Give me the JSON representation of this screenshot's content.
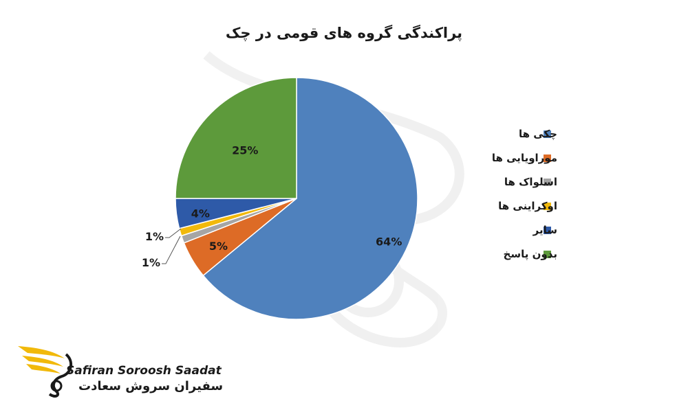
{
  "chart_data": {
    "type": "pie",
    "title": "پراکندگی گروه های قومی در چک",
    "slices": [
      {
        "label": "چکی ها",
        "value": 64,
        "display": "64%",
        "color": "#4f81bd"
      },
      {
        "label": "موراویایی ها",
        "value": 5,
        "display": "5%",
        "color": "#dd6b26"
      },
      {
        "label": "اسلواک ها",
        "value": 1,
        "display": "1%",
        "color": "#a5a5a5"
      },
      {
        "label": "اوکراینی ها",
        "value": 1,
        "display": "1%",
        "color": "#f1b90b"
      },
      {
        "label": "سایر",
        "value": 4,
        "display": "4%",
        "color": "#2e5aa8"
      },
      {
        "label": "بدون پاسخ",
        "value": 25,
        "display": "25%",
        "color": "#5d9a3b"
      }
    ],
    "legend_position": "right"
  },
  "logo": {
    "name_en": "Safiran Soroosh Saadat",
    "name_fa": "سفیران سروش سعادت",
    "accent_color": "#f1b90b"
  }
}
